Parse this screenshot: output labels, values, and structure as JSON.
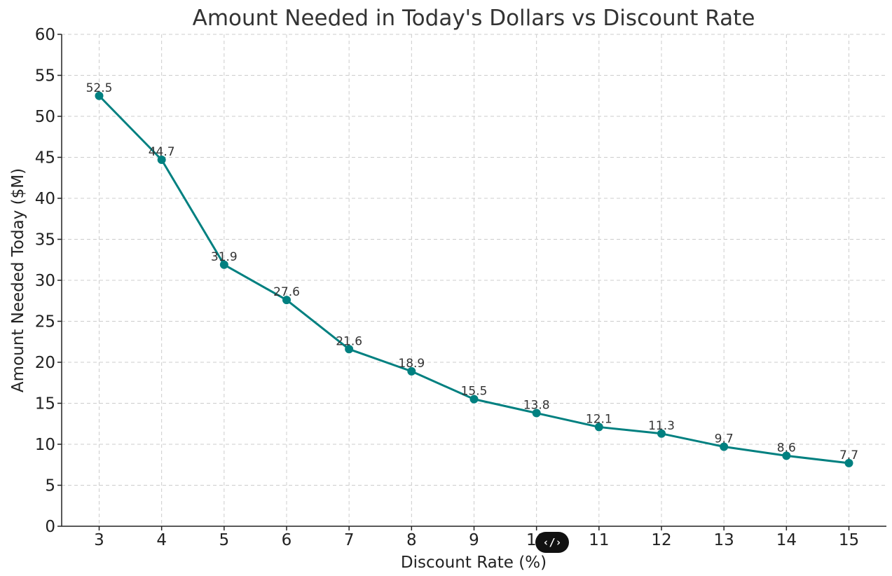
{
  "chart_data": {
    "type": "line",
    "title": "Amount Needed in Today's Dollars vs Discount Rate",
    "xlabel": "Discount Rate (%)",
    "ylabel": "Amount Needed Today ($M)",
    "x": [
      3,
      4,
      5,
      6,
      7,
      8,
      9,
      10,
      11,
      12,
      13,
      14,
      15
    ],
    "series": [
      {
        "values": [
          52.5,
          44.7,
          31.9,
          27.6,
          21.6,
          18.9,
          15.5,
          13.8,
          12.1,
          11.3,
          9.7,
          8.6,
          7.7
        ],
        "data_labels": [
          "52.5",
          "44.7",
          "31.9",
          "27.6",
          "21.6",
          "18.9",
          "15.5",
          "13.8",
          "12.1",
          "11.3",
          "9.7",
          "8.6",
          "7.7"
        ],
        "color": "#008080"
      }
    ],
    "xlim": [
      2.4,
      15.6
    ],
    "ylim": [
      0,
      60
    ],
    "xticks": [
      "3",
      "4",
      "5",
      "6",
      "7",
      "8",
      "9",
      "10",
      "11",
      "12",
      "13",
      "14",
      "15"
    ],
    "yticks": [
      "0",
      "5",
      "10",
      "15",
      "20",
      "25",
      "30",
      "35",
      "40",
      "45",
      "50",
      "55",
      "60"
    ],
    "grid": true,
    "marker": "circle"
  },
  "overlay": {
    "code_badge_icon": "code-icon",
    "code_badge_text": "‹/›"
  }
}
